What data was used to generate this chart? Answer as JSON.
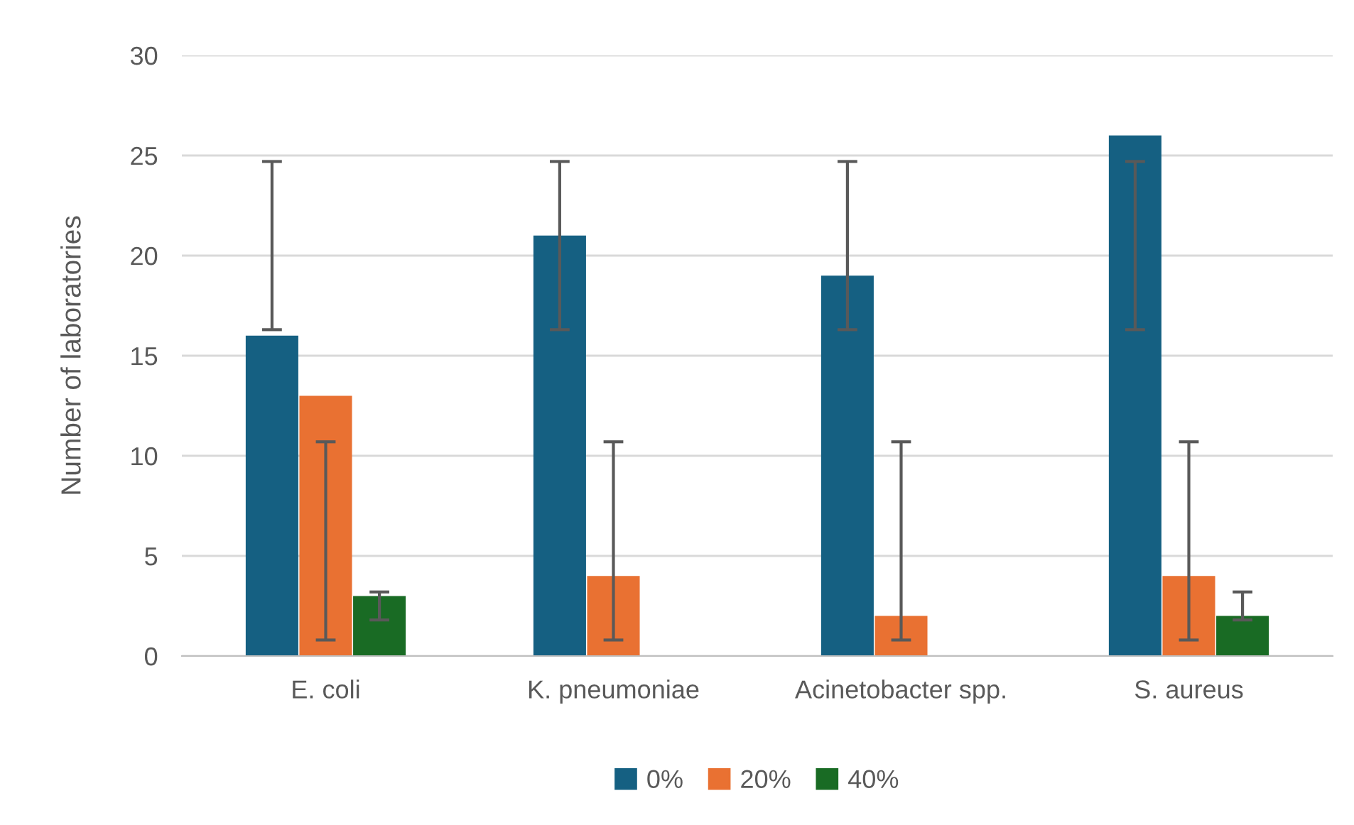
{
  "chart_data": {
    "type": "bar",
    "ylabel": "Number of laboratories",
    "categories": [
      "E. coli",
      "K. pneumoniae",
      "Acinetobacter spp.",
      "S. aureus"
    ],
    "series": [
      {
        "name": "0%",
        "color": "#156082",
        "values": [
          16,
          21,
          19,
          26
        ],
        "errors": [
          [
            16.3,
            24.7
          ],
          [
            16.3,
            24.7
          ],
          [
            16.3,
            24.7
          ],
          [
            16.3,
            24.7
          ]
        ]
      },
      {
        "name": "20%",
        "color": "#e97132",
        "values": [
          13,
          4,
          2,
          4
        ],
        "errors": [
          [
            0.8,
            10.7
          ],
          [
            0.8,
            10.7
          ],
          [
            0.8,
            10.7
          ],
          [
            0.8,
            10.7
          ]
        ]
      },
      {
        "name": "40%",
        "color": "#196b24",
        "values": [
          3,
          null,
          null,
          2
        ],
        "errors": [
          [
            1.8,
            3.2
          ],
          null,
          null,
          [
            1.8,
            3.2
          ]
        ]
      }
    ],
    "ylim": [
      0,
      30
    ],
    "yticks": [
      0,
      5,
      10,
      15,
      20,
      25,
      30
    ],
    "grid": "y",
    "legend": "bottom"
  }
}
